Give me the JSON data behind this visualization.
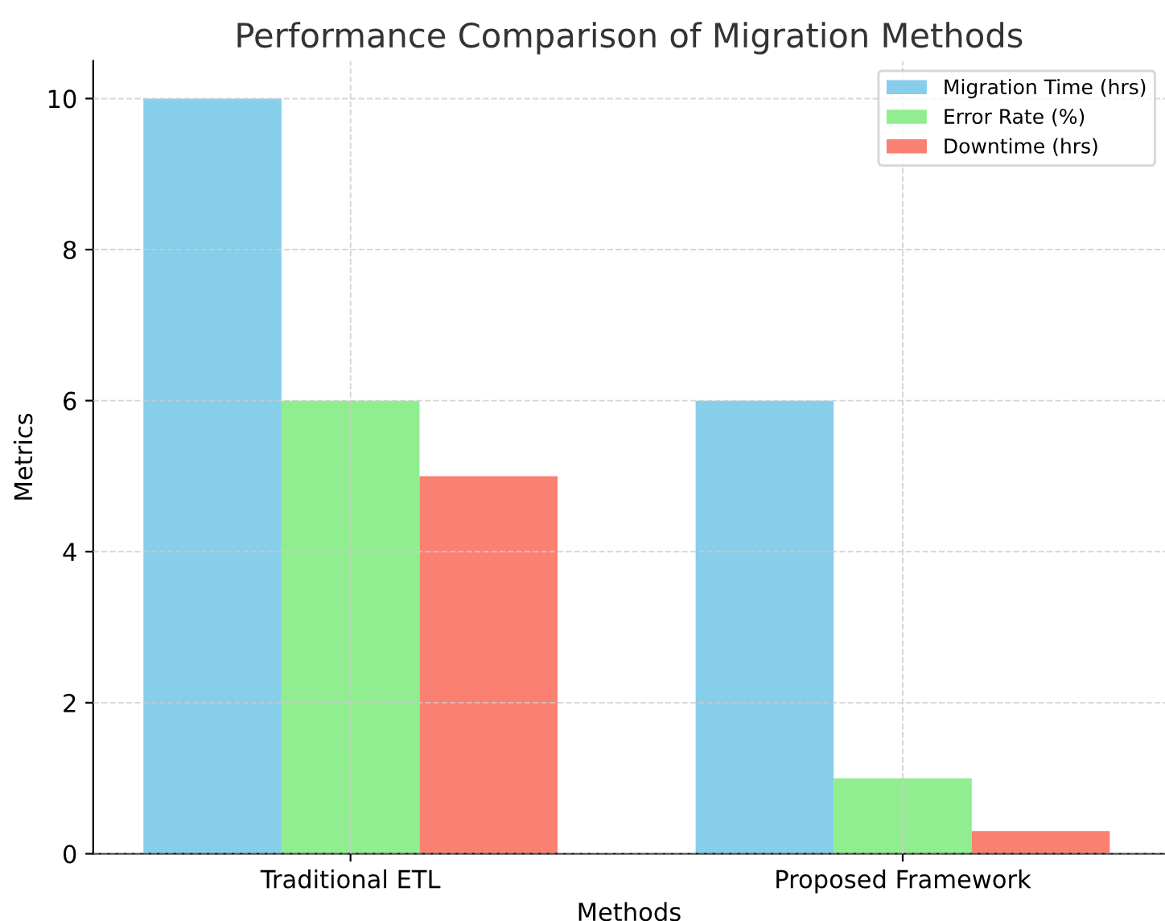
{
  "chart_data": {
    "type": "bar",
    "title": "Performance Comparison of Migration Methods",
    "xlabel": "Methods",
    "ylabel": "Metrics",
    "categories": [
      "Traditional ETL",
      "Proposed Framework"
    ],
    "series": [
      {
        "name": "Migration Time (hrs)",
        "color": "#87ceeb",
        "values": [
          10,
          6
        ]
      },
      {
        "name": "Error Rate (%)",
        "color": "#90ee90",
        "values": [
          6,
          1
        ]
      },
      {
        "name": "Downtime (hrs)",
        "color": "#fa8072",
        "values": [
          5,
          0.3
        ]
      }
    ],
    "ylim": [
      0,
      10.5
    ],
    "yticks": [
      0,
      2,
      4,
      6,
      8,
      10
    ],
    "grid": true,
    "legend": "top right"
  }
}
